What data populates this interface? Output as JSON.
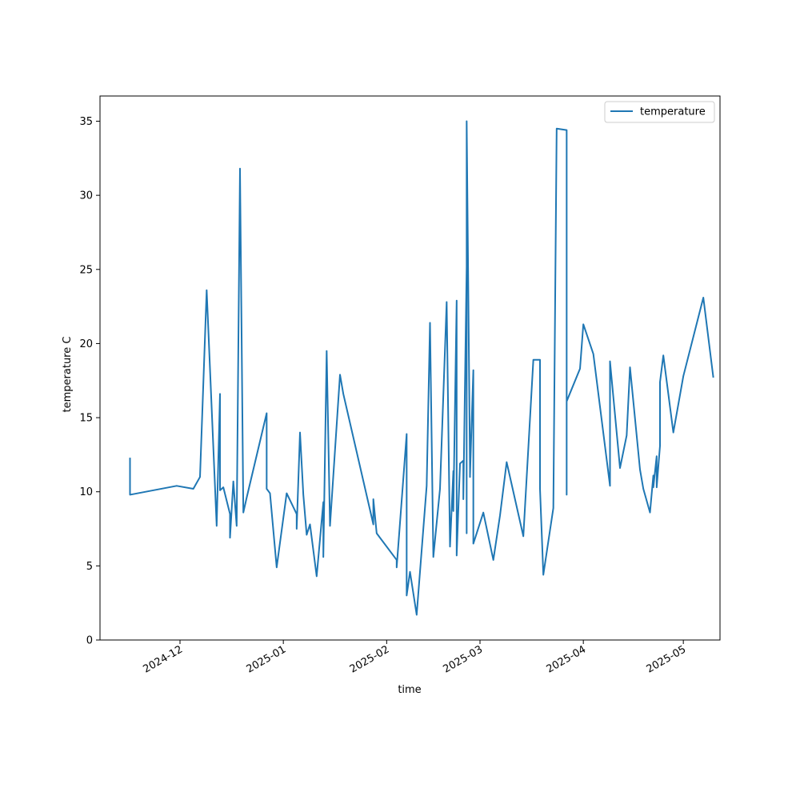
{
  "chart_data": {
    "type": "line",
    "title": "",
    "xlabel": "time",
    "ylabel": "temperature C",
    "x_axis_type": "date",
    "xlim": [
      "2024-11-07",
      "2025-05-12"
    ],
    "ylim": [
      0,
      36.7
    ],
    "xticks": [
      "2024-12-01",
      "2025-01-01",
      "2025-02-01",
      "2025-03-01",
      "2025-04-01",
      "2025-05-01"
    ],
    "xtick_labels": [
      "2024-12",
      "2025-01",
      "2025-02",
      "2025-03",
      "2025-04",
      "2025-05"
    ],
    "yticks": [
      0,
      5,
      10,
      15,
      20,
      25,
      30,
      35
    ],
    "ytick_labels": [
      "0",
      "5",
      "10",
      "15",
      "20",
      "25",
      "30",
      "35"
    ],
    "grid": false,
    "legend_position": "top-right",
    "color": "#1f77b4",
    "series": [
      {
        "name": "temperature",
        "x": [
          "2024-11-16",
          "2024-11-16",
          "2024-11-16",
          "2024-11-30",
          "2024-12-05",
          "2024-12-07",
          "2024-12-09",
          "2024-12-12",
          "2024-12-13",
          "2024-12-13",
          "2024-12-14",
          "2024-12-16",
          "2024-12-16",
          "2024-12-17",
          "2024-12-18",
          "2024-12-19",
          "2024-12-19",
          "2024-12-20",
          "2024-12-20",
          "2024-12-21",
          "2024-12-27",
          "2024-12-27",
          "2024-12-28",
          "2024-12-30",
          "2025-01-02",
          "2025-01-05",
          "2025-01-05",
          "2025-01-06",
          "2025-01-07",
          "2025-01-08",
          "2025-01-09",
          "2025-01-11",
          "2025-01-13",
          "2025-01-13",
          "2025-01-14",
          "2025-01-15",
          "2025-01-18",
          "2025-01-19",
          "2025-01-28",
          "2025-01-28",
          "2025-01-29",
          "2025-02-04",
          "2025-02-04",
          "2025-02-07",
          "2025-02-07",
          "2025-02-08",
          "2025-02-10",
          "2025-02-13",
          "2025-02-14",
          "2025-02-15",
          "2025-02-17",
          "2025-02-19",
          "2025-02-20",
          "2025-02-21",
          "2025-02-21",
          "2025-02-22",
          "2025-02-22",
          "2025-02-23",
          "2025-02-24",
          "2025-02-24",
          "2025-02-25",
          "2025-02-25",
          "2025-02-25",
          "2025-02-25",
          "2025-02-26",
          "2025-02-26",
          "2025-02-26",
          "2025-02-27",
          "2025-02-27",
          "2025-03-02",
          "2025-03-05",
          "2025-03-07",
          "2025-03-09",
          "2025-03-14",
          "2025-03-17",
          "2025-03-19",
          "2025-03-19",
          "2025-03-20",
          "2025-03-22",
          "2025-03-23",
          "2025-03-24",
          "2025-03-27",
          "2025-03-27",
          "2025-03-27",
          "2025-03-31",
          "2025-04-01",
          "2025-04-04",
          "2025-04-09",
          "2025-04-09",
          "2025-04-12",
          "2025-04-14",
          "2025-04-15",
          "2025-04-18",
          "2025-04-19",
          "2025-04-21",
          "2025-04-22",
          "2025-04-22",
          "2025-04-23",
          "2025-04-23",
          "2025-04-24",
          "2025-04-24",
          "2025-04-25",
          "2025-04-28",
          "2025-05-01",
          "2025-05-07",
          "2025-05-10",
          "2025-05-10"
        ],
        "y": [
          12.3,
          12.1,
          9.8,
          10.4,
          10.2,
          11.0,
          23.6,
          7.7,
          16.6,
          10.1,
          10.3,
          8.5,
          6.9,
          10.7,
          7.7,
          31.8,
          31.7,
          8.6,
          8.6,
          9.6,
          15.3,
          10.2,
          9.9,
          4.9,
          9.9,
          8.5,
          7.5,
          14.0,
          9.8,
          7.1,
          7.8,
          4.3,
          9.3,
          5.6,
          19.5,
          7.7,
          17.9,
          16.6,
          7.8,
          9.5,
          7.2,
          5.4,
          4.9,
          13.9,
          3.0,
          4.6,
          1.7,
          10.4,
          21.4,
          5.6,
          10.2,
          22.8,
          6.3,
          11.4,
          8.7,
          22.9,
          5.7,
          11.9,
          12.1,
          9.5,
          25.2,
          7.2,
          30.2,
          35.0,
          11.5,
          11.0,
          11.1,
          18.2,
          6.5,
          8.6,
          5.4,
          8.4,
          12.0,
          7.0,
          18.9,
          18.9,
          10.2,
          4.4,
          7.4,
          8.9,
          34.5,
          34.4,
          9.8,
          16.1,
          18.3,
          21.3,
          19.3,
          10.4,
          18.8,
          11.6,
          13.8,
          18.4,
          11.5,
          10.2,
          8.6,
          11.1,
          10.3,
          12.4,
          10.3,
          13.1,
          17.4,
          19.2,
          14.0,
          17.8,
          23.1,
          17.7,
          17.7
        ]
      }
    ]
  }
}
